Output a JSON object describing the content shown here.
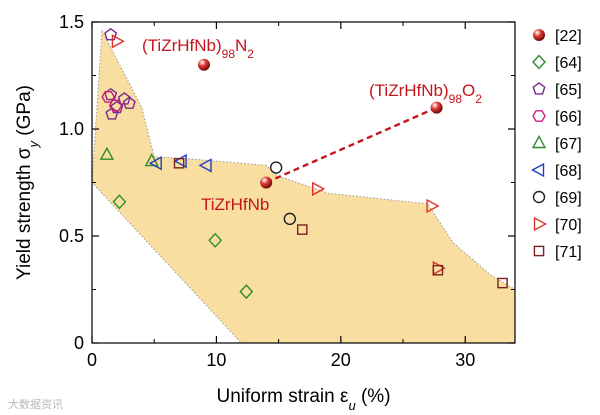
{
  "chart_data": {
    "type": "scatter",
    "xlabel_main": "Uniform strain ε",
    "xlabel_sub": "u",
    "xlabel_unit": " (%)",
    "ylabel_main": "Yield strength σ",
    "ylabel_sub": "y",
    "ylabel_unit": " (GPa)",
    "xlim": [
      0,
      34
    ],
    "ylim": [
      0,
      1.5
    ],
    "xticks": [
      0,
      10,
      20,
      30
    ],
    "yticks": [
      0,
      0.5,
      1.0,
      1.5
    ],
    "ytick_labels": [
      "0",
      "0.5",
      "1.0",
      "1.5"
    ],
    "region": {
      "fill": "#f9dea1",
      "edge": "#9a9a9a",
      "polygon": [
        [
          0.8,
          1.46
        ],
        [
          4,
          1.1
        ],
        [
          5,
          0.87
        ],
        [
          8,
          0.86
        ],
        [
          14,
          0.83
        ],
        [
          15,
          0.78
        ],
        [
          19,
          0.7
        ],
        [
          27,
          0.65
        ],
        [
          29,
          0.47
        ],
        [
          32,
          0.32
        ],
        [
          34,
          0.25
        ],
        [
          34,
          0.0
        ],
        [
          12,
          0.0
        ],
        [
          0,
          0.75
        ]
      ]
    },
    "series": [
      {
        "name": "[22]",
        "marker": "sphere",
        "color": "#c4161c",
        "points": [
          [
            9.0,
            1.3
          ],
          [
            27.7,
            1.1
          ],
          [
            14.0,
            0.75
          ]
        ]
      },
      {
        "name": "[64]",
        "marker": "diamond",
        "color": "#2e8b2e",
        "points": [
          [
            2.2,
            0.66
          ],
          [
            9.9,
            0.48
          ],
          [
            12.4,
            0.24
          ]
        ]
      },
      {
        "name": "[65]",
        "marker": "pentagon",
        "color": "#7b2a90",
        "points": [
          [
            1.5,
            1.44
          ],
          [
            1.5,
            1.16
          ],
          [
            2.0,
            1.1
          ],
          [
            2.6,
            1.14
          ],
          [
            3.0,
            1.12
          ],
          [
            1.6,
            1.07
          ]
        ]
      },
      {
        "name": "[66]",
        "marker": "hexagon",
        "color": "#c8207a",
        "points": [
          [
            1.3,
            1.15
          ],
          [
            1.9,
            1.11
          ]
        ]
      },
      {
        "name": "[67]",
        "marker": "triangle-up",
        "color": "#2e8b2e",
        "points": [
          [
            1.2,
            0.88
          ],
          [
            4.8,
            0.85
          ]
        ]
      },
      {
        "name": "[68]",
        "marker": "triangle-left",
        "color": "#1f3fbf",
        "points": [
          [
            5.2,
            0.84
          ],
          [
            7.2,
            0.85
          ],
          [
            9.2,
            0.83
          ]
        ]
      },
      {
        "name": "[69]",
        "marker": "circle",
        "color": "#222222",
        "points": [
          [
            14.8,
            0.82
          ],
          [
            15.9,
            0.58
          ]
        ]
      },
      {
        "name": "[70]",
        "marker": "triangle-right",
        "color": "#e0302a",
        "points": [
          [
            2.0,
            1.41
          ],
          [
            18.1,
            0.72
          ],
          [
            27.3,
            0.64
          ],
          [
            27.8,
            0.35
          ]
        ]
      },
      {
        "name": "[71]",
        "marker": "square",
        "color": "#7a2222",
        "points": [
          [
            7.0,
            0.84
          ],
          [
            16.9,
            0.53
          ],
          [
            27.8,
            0.34
          ],
          [
            33.0,
            0.28
          ]
        ]
      }
    ],
    "dashed_line": {
      "color": "#c4161c",
      "from": [
        14.0,
        0.75
      ],
      "to": [
        27.7,
        1.1
      ]
    },
    "annotations": [
      {
        "main": "(TiZrHfNb)",
        "sub": "98",
        "tail": "N",
        "tail_sub": "2",
        "anchor": "N2"
      },
      {
        "main": "(TiZrHfNb)",
        "sub": "98",
        "tail": "O",
        "tail_sub": "2",
        "anchor": "O2"
      },
      {
        "main": "TiZrHfNb",
        "sub": "",
        "tail": "",
        "tail_sub": "",
        "anchor": "base"
      }
    ]
  },
  "watermark": "大数据资讯"
}
